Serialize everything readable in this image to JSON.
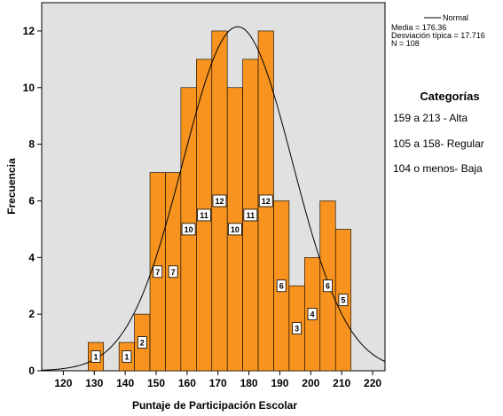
{
  "chart_data": {
    "type": "bar",
    "subtype": "histogram with normal curve",
    "xlabel": "Puntaje de Participación Escolar",
    "ylabel": "Frecuencia",
    "xlim": [
      113,
      224
    ],
    "ylim": [
      0,
      13
    ],
    "x_ticks": [
      "120",
      "130",
      "140",
      "150",
      "160",
      "170",
      "180",
      "190",
      "200",
      "210",
      "220"
    ],
    "y_ticks": [
      "0",
      "2",
      "4",
      "6",
      "8",
      "10",
      "12"
    ],
    "bin_width": 5,
    "bins": [
      {
        "start": 128,
        "value": 1
      },
      {
        "start": 138,
        "value": 1
      },
      {
        "start": 143,
        "value": 2
      },
      {
        "start": 148,
        "value": 7
      },
      {
        "start": 153,
        "value": 7
      },
      {
        "start": 158,
        "value": 10
      },
      {
        "start": 163,
        "value": 11
      },
      {
        "start": 168,
        "value": 12
      },
      {
        "start": 173,
        "value": 10
      },
      {
        "start": 178,
        "value": 11
      },
      {
        "start": 183,
        "value": 12
      },
      {
        "start": 188,
        "value": 6
      },
      {
        "start": 193,
        "value": 3
      },
      {
        "start": 198,
        "value": 4
      },
      {
        "start": 203,
        "value": 6
      },
      {
        "start": 208,
        "value": 5
      }
    ],
    "data_labels": [
      {
        "x": 130.5,
        "y": 0.5,
        "text": "1"
      },
      {
        "x": 140.5,
        "y": 0.5,
        "text": "1"
      },
      {
        "x": 145.5,
        "y": 1.0,
        "text": "2"
      },
      {
        "x": 150.5,
        "y": 3.5,
        "text": "7"
      },
      {
        "x": 155.5,
        "y": 3.5,
        "text": "7"
      },
      {
        "x": 160.5,
        "y": 5.0,
        "text": "10"
      },
      {
        "x": 165.5,
        "y": 5.5,
        "text": "11"
      },
      {
        "x": 170.5,
        "y": 6.0,
        "text": "12"
      },
      {
        "x": 175.5,
        "y": 5.0,
        "text": "10"
      },
      {
        "x": 180.5,
        "y": 5.5,
        "text": "11"
      },
      {
        "x": 185.5,
        "y": 6.0,
        "text": "12"
      },
      {
        "x": 190.5,
        "y": 3.0,
        "text": "6"
      },
      {
        "x": 195.5,
        "y": 1.5,
        "text": "3"
      },
      {
        "x": 200.5,
        "y": 2.0,
        "text": "4"
      },
      {
        "x": 205.5,
        "y": 3.0,
        "text": "6"
      },
      {
        "x": 210.5,
        "y": 2.5,
        "text": "5"
      }
    ],
    "normal_curve": {
      "mean": 176.36,
      "sd": 17.716,
      "peak": 12.15
    },
    "legend": {
      "entry": "Normal",
      "position": "top-right"
    },
    "stats": [
      "Media = 176.36",
      "Desviación típica = 17.716",
      "N = 108"
    ],
    "colors": {
      "bar": "#f7931e",
      "plot_bg": "#e1e1e1",
      "curve": "#000000"
    }
  },
  "categories_panel": {
    "title": "Categorías",
    "items": [
      "159 a 213 - Alta",
      "105 a 158- Regular",
      "104 o menos-  Baja"
    ]
  }
}
